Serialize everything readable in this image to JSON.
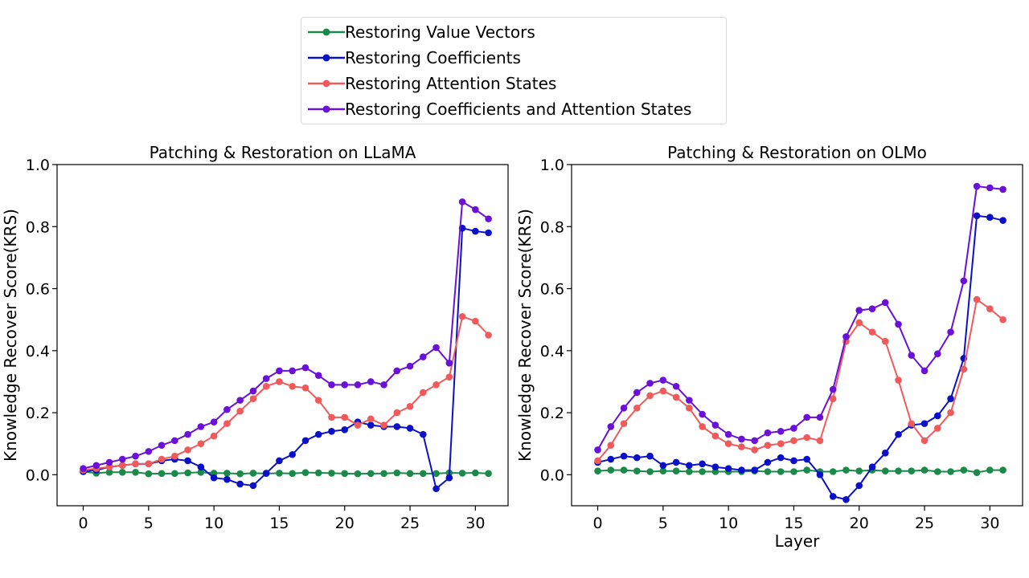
{
  "legend": {
    "items": [
      {
        "label": "Restoring Value Vectors",
        "color": "#1a8a4a"
      },
      {
        "label": "Restoring Coefficients",
        "color": "#0a10c8"
      },
      {
        "label": "Restoring Attention States",
        "color": "#f05a5a"
      },
      {
        "label": "Restoring Coefficients and Attention States",
        "color": "#6a10d8"
      }
    ]
  },
  "chart_data": [
    {
      "type": "line",
      "title": "Patching & Restoration on LLaMA",
      "xlabel": "",
      "ylabel": "Knowledge Recover Score(KRS)",
      "xlim": [
        -2,
        32.5
      ],
      "ylim": [
        -0.1,
        1.0
      ],
      "xticks": [
        0,
        5,
        10,
        15,
        20,
        25,
        30
      ],
      "yticks": [
        0.0,
        0.2,
        0.4,
        0.6,
        0.8,
        1.0
      ],
      "x": [
        0,
        1,
        2,
        3,
        4,
        5,
        6,
        7,
        8,
        9,
        10,
        11,
        12,
        13,
        14,
        15,
        16,
        17,
        18,
        19,
        20,
        21,
        22,
        23,
        24,
        25,
        26,
        27,
        28,
        29,
        30,
        31
      ],
      "series": [
        {
          "name": "Restoring Value Vectors",
          "color": "#1a8a4a",
          "values": [
            0.01,
            0.005,
            0.008,
            0.008,
            0.008,
            0.003,
            0.004,
            0.004,
            0.006,
            0.008,
            0.005,
            0.005,
            0.003,
            0.005,
            0.004,
            0.005,
            0.004,
            0.007,
            0.006,
            0.005,
            0.004,
            0.003,
            0.004,
            0.004,
            0.006,
            0.004,
            0.004,
            0.004,
            0.006,
            0.005,
            0.006,
            0.004
          ]
        },
        {
          "name": "Restoring Coefficients",
          "color": "#0a10c8",
          "values": [
            0.01,
            0.015,
            0.025,
            0.03,
            0.035,
            0.035,
            0.045,
            0.05,
            0.045,
            0.025,
            -0.01,
            -0.015,
            -0.03,
            -0.035,
            0.005,
            0.045,
            0.065,
            0.11,
            0.13,
            0.14,
            0.145,
            0.17,
            0.16,
            0.155,
            0.155,
            0.15,
            0.13,
            -0.045,
            -0.01,
            0.795,
            0.785,
            0.78
          ]
        },
        {
          "name": "Restoring Attention States",
          "color": "#f05a5a",
          "values": [
            0.015,
            0.02,
            0.025,
            0.03,
            0.035,
            0.035,
            0.05,
            0.06,
            0.08,
            0.1,
            0.125,
            0.165,
            0.205,
            0.245,
            0.285,
            0.3,
            0.285,
            0.28,
            0.24,
            0.185,
            0.185,
            0.16,
            0.18,
            0.16,
            0.2,
            0.22,
            0.265,
            0.29,
            0.315,
            0.51,
            0.495,
            0.45
          ]
        },
        {
          "name": "Restoring Coefficients and Attention States",
          "color": "#6a10d8",
          "values": [
            0.02,
            0.03,
            0.04,
            0.05,
            0.06,
            0.075,
            0.095,
            0.11,
            0.13,
            0.155,
            0.17,
            0.21,
            0.24,
            0.27,
            0.31,
            0.335,
            0.335,
            0.345,
            0.32,
            0.29,
            0.29,
            0.29,
            0.3,
            0.29,
            0.335,
            0.35,
            0.38,
            0.41,
            0.36,
            0.88,
            0.855,
            0.825
          ]
        }
      ]
    },
    {
      "type": "line",
      "title": "Patching & Restoration on OLMo",
      "xlabel": "Layer",
      "ylabel": "Knowledge Recover Score(KRS)",
      "xlim": [
        -2,
        32.5
      ],
      "ylim": [
        -0.1,
        1.0
      ],
      "xticks": [
        0,
        5,
        10,
        15,
        20,
        25,
        30
      ],
      "yticks": [
        0.0,
        0.2,
        0.4,
        0.6,
        0.8,
        1.0
      ],
      "x": [
        0,
        1,
        2,
        3,
        4,
        5,
        6,
        7,
        8,
        9,
        10,
        11,
        12,
        13,
        14,
        15,
        16,
        17,
        18,
        19,
        20,
        21,
        22,
        23,
        24,
        25,
        26,
        27,
        28,
        29,
        30,
        31
      ],
      "series": [
        {
          "name": "Restoring Value Vectors",
          "color": "#1a8a4a",
          "values": [
            0.012,
            0.015,
            0.015,
            0.012,
            0.01,
            0.012,
            0.012,
            0.01,
            0.01,
            0.01,
            0.01,
            0.01,
            0.012,
            0.01,
            0.01,
            0.01,
            0.015,
            0.01,
            0.01,
            0.015,
            0.012,
            0.015,
            0.012,
            0.012,
            0.012,
            0.015,
            0.01,
            0.01,
            0.015,
            0.007,
            0.015,
            0.015
          ]
        },
        {
          "name": "Restoring Coefficients",
          "color": "#0a10c8",
          "values": [
            0.04,
            0.05,
            0.06,
            0.055,
            0.06,
            0.03,
            0.04,
            0.03,
            0.035,
            0.025,
            0.02,
            0.015,
            0.015,
            0.04,
            0.055,
            0.045,
            0.05,
            0.0,
            -0.07,
            -0.08,
            -0.035,
            0.025,
            0.07,
            0.13,
            0.16,
            0.165,
            0.19,
            0.245,
            0.375,
            0.835,
            0.83,
            0.82
          ]
        },
        {
          "name": "Restoring Attention States",
          "color": "#f05a5a",
          "values": [
            0.045,
            0.095,
            0.165,
            0.215,
            0.255,
            0.27,
            0.25,
            0.215,
            0.155,
            0.125,
            0.1,
            0.09,
            0.08,
            0.095,
            0.1,
            0.11,
            0.12,
            0.11,
            0.245,
            0.43,
            0.49,
            0.46,
            0.43,
            0.305,
            0.165,
            0.11,
            0.15,
            0.2,
            0.34,
            0.565,
            0.535,
            0.5
          ]
        },
        {
          "name": "Restoring Coefficients and Attention States",
          "color": "#6a10d8",
          "values": [
            0.08,
            0.155,
            0.215,
            0.265,
            0.295,
            0.305,
            0.285,
            0.24,
            0.195,
            0.16,
            0.13,
            0.115,
            0.11,
            0.135,
            0.14,
            0.15,
            0.185,
            0.185,
            0.275,
            0.445,
            0.53,
            0.535,
            0.555,
            0.485,
            0.385,
            0.335,
            0.39,
            0.46,
            0.625,
            0.93,
            0.925,
            0.92
          ]
        }
      ]
    }
  ]
}
